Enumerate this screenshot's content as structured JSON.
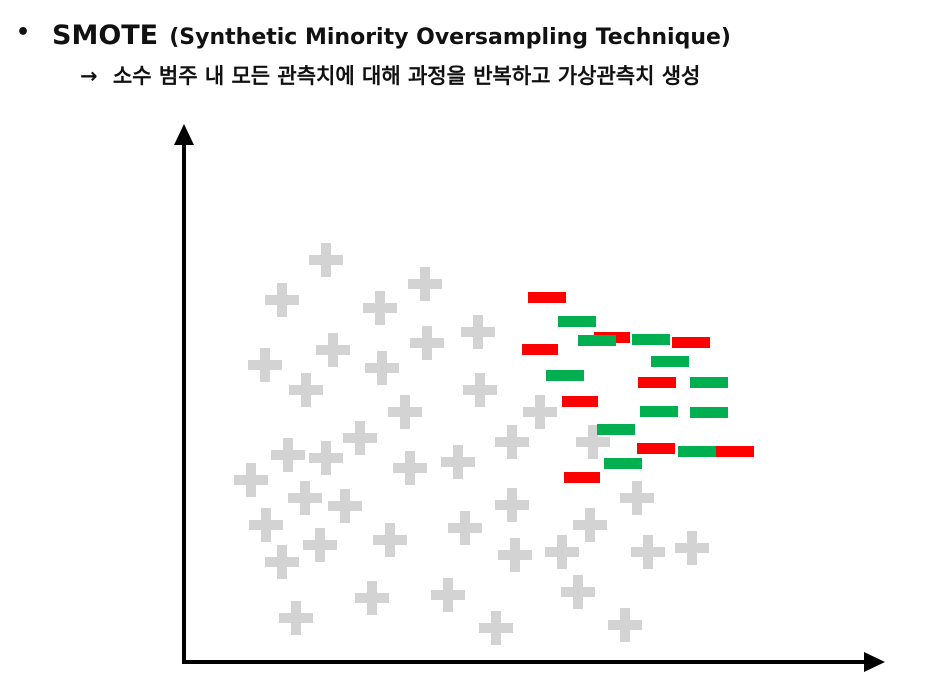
{
  "header": {
    "bullet": "•",
    "title": "SMOTE",
    "title_paren": "(Synthetic Minority Oversampling Technique)",
    "subtitle_arrow": "→",
    "subtitle": "소수 범주 내 모든 관측치에 대해 과정을 반복하고 가상관측치 생성"
  },
  "colors": {
    "majority": "#d3d3d3",
    "minority": "#ff0000",
    "synthetic": "#00b050",
    "axis": "#000000"
  }
}
